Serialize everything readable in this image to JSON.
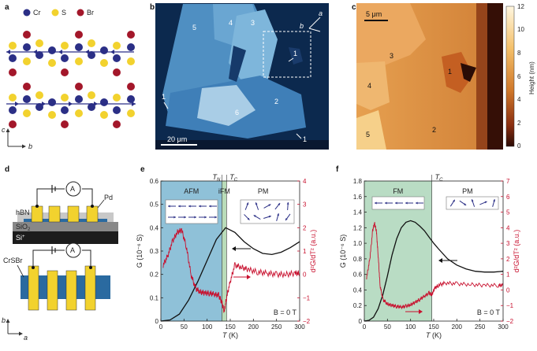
{
  "panel_letters": [
    "a",
    "b",
    "c",
    "d",
    "e",
    "f"
  ],
  "panel_a": {
    "legend": [
      {
        "element": "Cr",
        "color": "#2b2f86"
      },
      {
        "element": "S",
        "color": "#f2d22e"
      },
      {
        "element": "Br",
        "color": "#a3172a"
      }
    ],
    "axes": {
      "vertical": "c",
      "horizontal": "b"
    }
  },
  "panel_b": {
    "region_labels": [
      "5",
      "4",
      "3",
      "1",
      "2",
      "6",
      "1",
      "1"
    ],
    "scale_bar": "20 μm",
    "axes": {
      "a": "a",
      "b": "b"
    }
  },
  "panel_c": {
    "region_labels": [
      "3",
      "1",
      "4",
      "2",
      "5"
    ],
    "scale_bar": "5 μm",
    "colorbar_ticks": [
      "12",
      "10",
      "8",
      "6",
      "4",
      "2",
      "0"
    ],
    "colorbar_label": "Height (nm)"
  },
  "panel_d": {
    "meter": "A",
    "top_labels": {
      "contact": "Pd",
      "layer1": "hBN",
      "layer2": "SiO",
      "layer2_sub": "2",
      "layer3": "Si",
      "layer3_sup": "+"
    },
    "bottom_labels": {
      "flake": "CrSBr",
      "axis_b": "b",
      "axis_a": "a"
    }
  },
  "chart_data": [
    {
      "panel": "e",
      "type": "line",
      "xlabel": "T (K)",
      "ylabel_left": "G (10⁻⁶ S)",
      "ylabel_right": "d²G/dT² (a.u.)",
      "xlim": [
        0,
        300
      ],
      "ylim_left": [
        0,
        0.6
      ],
      "ylim_right": [
        -2,
        4
      ],
      "x_ticks": [
        "0",
        "50",
        "100",
        "150",
        "200",
        "250",
        "300"
      ],
      "y_ticks_left": [
        "0",
        "0.1",
        "0.2",
        "0.3",
        "0.4",
        "0.5",
        "0.6"
      ],
      "y_ticks_right": [
        "−2",
        "−1",
        "0",
        "1",
        "2",
        "3",
        "4"
      ],
      "regions": [
        {
          "name": "AFM",
          "from": 0,
          "to": 132,
          "color": "#8fc1d8"
        },
        {
          "name": "iFM",
          "from": 132,
          "to": 142,
          "color": "#b9dcb9"
        },
        {
          "name": "PM",
          "from": 142,
          "to": 300,
          "color": "#ffffff"
        }
      ],
      "transition_labels": [
        {
          "label": "T",
          "sub": "N",
          "x": 132
        },
        {
          "label": "T",
          "sub": "C",
          "x": 142
        }
      ],
      "annotation": "B = 0 T",
      "series": [
        {
          "name": "G",
          "axis": "left",
          "color": "#111111",
          "x": [
            0,
            20,
            40,
            60,
            80,
            100,
            120,
            140,
            160,
            180,
            200,
            220,
            240,
            260,
            280,
            300
          ],
          "y": [
            0.0,
            0.005,
            0.03,
            0.09,
            0.17,
            0.26,
            0.35,
            0.4,
            0.38,
            0.34,
            0.31,
            0.29,
            0.285,
            0.295,
            0.315,
            0.34
          ]
        },
        {
          "name": "d2G/dT2",
          "axis": "right",
          "color": "#c8102e",
          "x": [
            5,
            15,
            25,
            35,
            45,
            55,
            65,
            75,
            85,
            95,
            105,
            115,
            125,
            132,
            137,
            142,
            150,
            160,
            175,
            190,
            210,
            230,
            250,
            270,
            290,
            300
          ],
          "y": [
            0.4,
            0.8,
            1.4,
            1.8,
            1.9,
            1.2,
            0.0,
            -0.6,
            -0.75,
            -0.8,
            -0.8,
            -0.85,
            -0.9,
            -1.2,
            -1.6,
            -1.0,
            -0.3,
            0.4,
            0.3,
            0.2,
            0.1,
            0.05,
            0.0,
            0.0,
            0.05,
            0.05
          ]
        }
      ]
    },
    {
      "panel": "f",
      "type": "line",
      "xlabel": "T (K)",
      "ylabel_left": "G (10⁻⁶ S)",
      "ylabel_right": "d²G/dT² (a.u.)",
      "xlim": [
        0,
        300
      ],
      "ylim_left": [
        0,
        1.8
      ],
      "ylim_right": [
        -2,
        7
      ],
      "x_ticks": [
        "0",
        "50",
        "100",
        "150",
        "200",
        "250",
        "300"
      ],
      "y_ticks_left": [
        "0",
        "0.2",
        "0.4",
        "0.6",
        "0.8",
        "1.0",
        "1.2",
        "1.4",
        "1.6",
        "1.8"
      ],
      "y_ticks_right": [
        "−2",
        "−1",
        "0",
        "1",
        "2",
        "3",
        "4",
        "5",
        "6",
        "7"
      ],
      "regions": [
        {
          "name": "FM",
          "from": 0,
          "to": 146,
          "color": "#b9dcc4"
        },
        {
          "name": "PM",
          "from": 146,
          "to": 300,
          "color": "#ffffff"
        }
      ],
      "transition_labels": [
        {
          "label": "T",
          "sub": "C",
          "x": 146
        }
      ],
      "annotation": "B = 0 T",
      "series": [
        {
          "name": "G",
          "axis": "left",
          "color": "#111111",
          "x": [
            0,
            10,
            20,
            30,
            40,
            50,
            60,
            70,
            80,
            90,
            100,
            110,
            120,
            130,
            140,
            150,
            160,
            180,
            200,
            220,
            240,
            260,
            280,
            300
          ],
          "y": [
            0.0,
            0.01,
            0.05,
            0.16,
            0.34,
            0.58,
            0.85,
            1.06,
            1.2,
            1.27,
            1.29,
            1.27,
            1.22,
            1.16,
            1.08,
            1.0,
            0.93,
            0.8,
            0.72,
            0.67,
            0.64,
            0.63,
            0.63,
            0.64
          ]
        },
        {
          "name": "d2G/dT2",
          "axis": "right",
          "color": "#c8102e",
          "x": [
            5,
            12,
            18,
            22,
            26,
            30,
            34,
            40,
            50,
            60,
            70,
            80,
            90,
            100,
            110,
            120,
            130,
            140,
            146,
            152,
            160,
            175,
            200,
            230,
            260,
            290,
            300
          ],
          "y": [
            0.8,
            2.0,
            3.8,
            4.3,
            3.8,
            2.2,
            0.3,
            -0.6,
            -0.9,
            -1.0,
            -1.05,
            -1.1,
            -1.05,
            -0.95,
            -0.8,
            -0.6,
            -0.4,
            -0.2,
            -0.3,
            0.1,
            0.3,
            0.45,
            0.4,
            0.35,
            0.3,
            0.3,
            0.3
          ]
        }
      ]
    }
  ]
}
